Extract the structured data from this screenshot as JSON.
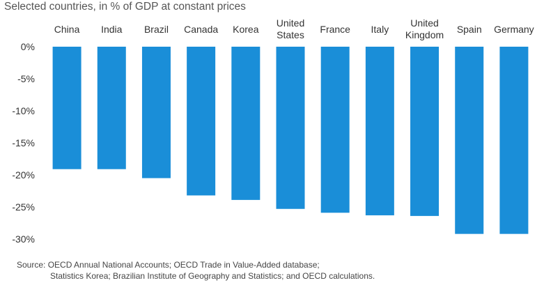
{
  "subtitle": "Selected countries, in % of GDP at constant prices",
  "source": {
    "line1": "Source:  OECD Annual National Accounts; OECD Trade in Value-Added database;",
    "line2": "Statistics Korea; Brazilian Institute of Geography and Statistics; and OECD calculations."
  },
  "chart_data": {
    "type": "bar",
    "title": "",
    "subtitle": "Selected countries, in % of GDP at constant prices",
    "xlabel": "",
    "ylabel": "",
    "categories": [
      [
        "China"
      ],
      [
        "India"
      ],
      [
        "Brazil"
      ],
      [
        "Canada"
      ],
      [
        "Korea"
      ],
      [
        "United",
        "States"
      ],
      [
        "France"
      ],
      [
        "Italy"
      ],
      [
        "United",
        "Kingdom"
      ],
      [
        "Spain"
      ],
      [
        "Germany"
      ]
    ],
    "values": [
      -19.1,
      -19.1,
      -20.5,
      -23.2,
      -23.9,
      -25.3,
      -25.9,
      -26.3,
      -26.4,
      -29.2,
      -29.2
    ],
    "ylim": [
      -30,
      0
    ],
    "yticks": [
      "0%",
      "-5%",
      "-10%",
      "-15%",
      "-20%",
      "-25%",
      "-30%"
    ],
    "grid": false,
    "legend": "none",
    "bar_color": "#1a8ed8",
    "category_position": "top"
  }
}
